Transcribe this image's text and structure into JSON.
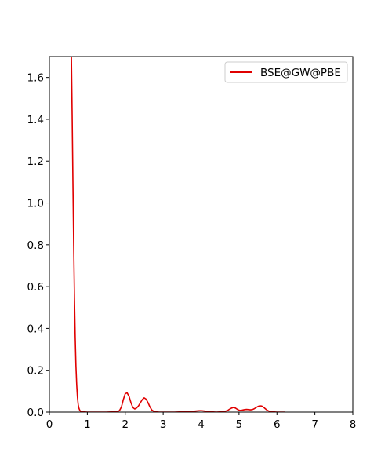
{
  "chart_data": {
    "type": "line",
    "title": "",
    "xlabel": "",
    "ylabel": "",
    "xlim": [
      0,
      8
    ],
    "ylim": [
      0,
      1.7
    ],
    "xticks": [
      "0",
      "1",
      "2",
      "3",
      "4",
      "5",
      "6",
      "7",
      "8"
    ],
    "yticks": [
      "0.0",
      "0.2",
      "0.4",
      "0.6",
      "0.8",
      "1.0",
      "1.2",
      "1.4",
      "1.6"
    ],
    "grid": false,
    "legend_position": "top-right",
    "series": [
      {
        "name": "BSE@GW@PBE",
        "color": "#e00000",
        "x": [
          0.58,
          0.6,
          0.62,
          0.64,
          0.66,
          0.68,
          0.7,
          0.72,
          0.74,
          0.76,
          0.78,
          0.8,
          0.82,
          0.85,
          0.9,
          1.0,
          1.2,
          1.5,
          1.8,
          1.85,
          1.9,
          1.95,
          2.0,
          2.05,
          2.1,
          2.15,
          2.2,
          2.25,
          2.3,
          2.35,
          2.4,
          2.45,
          2.5,
          2.55,
          2.6,
          2.65,
          2.7,
          2.75,
          2.8,
          2.9,
          3.0,
          3.3,
          3.6,
          3.8,
          3.9,
          4.0,
          4.1,
          4.2,
          4.4,
          4.6,
          4.7,
          4.75,
          4.8,
          4.85,
          4.9,
          4.95,
          5.0,
          5.05,
          5.1,
          5.15,
          5.2,
          5.25,
          5.3,
          5.35,
          5.4,
          5.45,
          5.5,
          5.55,
          5.6,
          5.65,
          5.7,
          5.75,
          5.8,
          5.85,
          5.9,
          6.0,
          6.1,
          6.2
        ],
        "y": [
          1.7,
          1.42,
          1.1,
          0.8,
          0.55,
          0.36,
          0.22,
          0.13,
          0.07,
          0.035,
          0.018,
          0.009,
          0.004,
          0.002,
          0.001,
          0.0,
          0.0,
          0.0,
          0.002,
          0.008,
          0.025,
          0.06,
          0.088,
          0.092,
          0.075,
          0.045,
          0.022,
          0.015,
          0.02,
          0.03,
          0.045,
          0.06,
          0.068,
          0.062,
          0.045,
          0.025,
          0.01,
          0.004,
          0.001,
          0.0,
          0.0,
          0.0,
          0.002,
          0.004,
          0.006,
          0.007,
          0.005,
          0.002,
          0.0,
          0.002,
          0.008,
          0.014,
          0.019,
          0.022,
          0.02,
          0.014,
          0.009,
          0.008,
          0.01,
          0.012,
          0.013,
          0.012,
          0.011,
          0.012,
          0.016,
          0.022,
          0.027,
          0.03,
          0.029,
          0.023,
          0.015,
          0.008,
          0.004,
          0.002,
          0.001,
          0.0,
          0.0,
          0.0
        ]
      }
    ]
  }
}
